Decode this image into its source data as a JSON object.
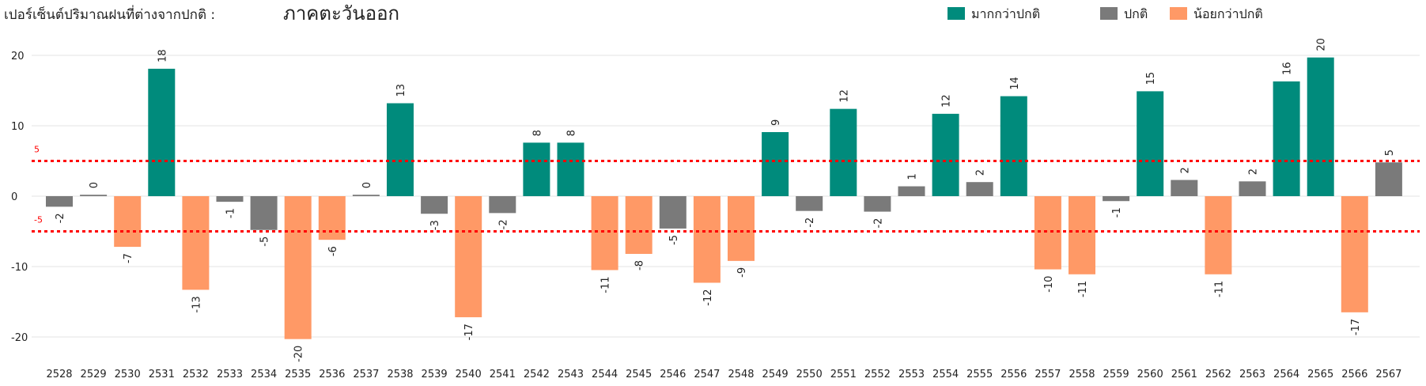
{
  "header": {
    "subtitle": "เปอร์เซ็นต์ปริมาณฝนที่ต่างจากปกติ :",
    "region": "ภาคตะวันออก"
  },
  "colors": {
    "above": "#008B7C",
    "normal": "#7A7A7A",
    "below": "#FF9966",
    "reference_line": "#FF0000"
  },
  "legend": {
    "placement": "top-right",
    "items": [
      {
        "key": "above",
        "label": "มากกว่าปกติ"
      },
      {
        "key": "normal",
        "label": "ปกติ"
      },
      {
        "key": "below",
        "label": "น้อยกว่าปกติ"
      }
    ]
  },
  "chart_data": {
    "type": "bar",
    "categories": [
      "2528",
      "2529",
      "2530",
      "2531",
      "2532",
      "2533",
      "2534",
      "2535",
      "2536",
      "2537",
      "2538",
      "2539",
      "2540",
      "2541",
      "2542",
      "2543",
      "2544",
      "2545",
      "2546",
      "2547",
      "2548",
      "2549",
      "2550",
      "2551",
      "2552",
      "2553",
      "2554",
      "2555",
      "2556",
      "2557",
      "2558",
      "2559",
      "2560",
      "2561",
      "2562",
      "2563",
      "2564",
      "2565",
      "2566",
      "2567"
    ],
    "values": [
      -1.5,
      0.2,
      -7.2,
      18.1,
      -13.3,
      -0.8,
      -4.8,
      -20.3,
      -6.2,
      0.2,
      13.2,
      -2.5,
      -17.2,
      -2.4,
      7.6,
      7.6,
      -10.5,
      -8.2,
      -4.6,
      -12.3,
      -9.2,
      9.1,
      -2.1,
      12.4,
      -2.2,
      1.4,
      11.7,
      2.0,
      14.2,
      -10.4,
      -11.1,
      -0.7,
      14.9,
      2.3,
      -11.1,
      2.1,
      16.3,
      19.7,
      -16.5,
      4.8
    ],
    "data_labels": [
      "-2",
      "0",
      "-7",
      "18",
      "-13",
      "-1",
      "-5",
      "-20",
      "-6",
      "0",
      "13",
      "-3",
      "-17",
      "-2",
      "8",
      "8",
      "-11",
      "-8",
      "-5",
      "-12",
      "-9",
      "9",
      "-2",
      "12",
      "-2",
      "1",
      "12",
      "2",
      "14",
      "-10",
      "-11",
      "-1",
      "15",
      "2",
      "-11",
      "2",
      "16",
      "20",
      "-17",
      "5"
    ],
    "classes": [
      "normal",
      "normal",
      "below",
      "above",
      "below",
      "normal",
      "normal",
      "below",
      "below",
      "normal",
      "above",
      "normal",
      "below",
      "normal",
      "above",
      "above",
      "below",
      "below",
      "normal",
      "below",
      "below",
      "above",
      "normal",
      "above",
      "normal",
      "normal",
      "above",
      "normal",
      "above",
      "below",
      "below",
      "normal",
      "above",
      "normal",
      "below",
      "normal",
      "above",
      "above",
      "below",
      "normal"
    ],
    "ylim": [
      -20,
      20
    ],
    "yticks": [
      20,
      10,
      0,
      -10,
      -20
    ],
    "ytick_labels": [
      "20",
      "10",
      "0",
      "-10",
      "-20"
    ],
    "reference_lines": [
      {
        "value": 5,
        "label": "5"
      },
      {
        "value": -5,
        "label": "-5"
      }
    ],
    "grid": true
  }
}
